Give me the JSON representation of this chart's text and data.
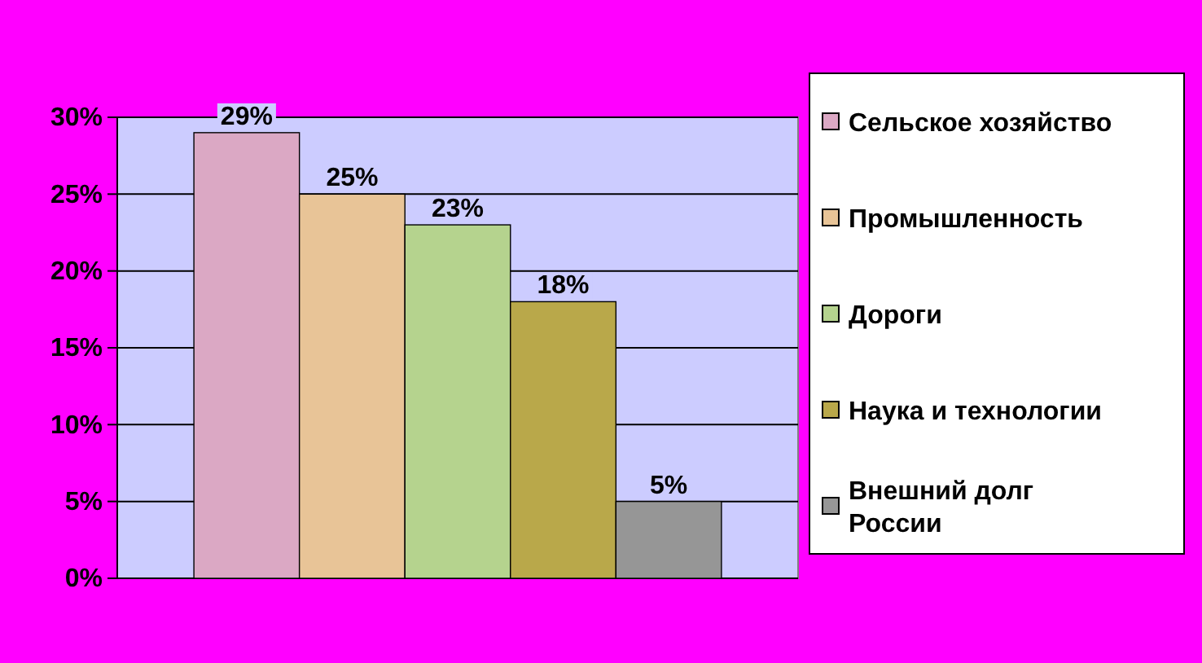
{
  "chart_data": {
    "type": "bar",
    "categories": [
      null
    ],
    "series": [
      {
        "name": "Сельское хозяйство",
        "color": "#dba8c4",
        "values": [
          29
        ],
        "value_labels": [
          "29%"
        ]
      },
      {
        "name": "Промышленность",
        "color": "#e8c497",
        "values": [
          25
        ],
        "value_labels": [
          "25%"
        ]
      },
      {
        "name": "Дороги",
        "color": "#b5d38e",
        "values": [
          23
        ],
        "value_labels": [
          "23%"
        ]
      },
      {
        "name": "Наука и технологии",
        "color": "#b9a84a",
        "values": [
          18
        ],
        "value_labels": [
          "18%"
        ]
      },
      {
        "name": "Внешний долг России",
        "color": "#969696",
        "values": [
          5
        ],
        "value_labels": [
          "5%"
        ]
      }
    ],
    "ylim": [
      0,
      30
    ],
    "yticks": [
      {
        "value": 0,
        "label": "0%"
      },
      {
        "value": 5,
        "label": "5%"
      },
      {
        "value": 10,
        "label": "10%"
      },
      {
        "value": 15,
        "label": "15%"
      },
      {
        "value": 20,
        "label": "20%"
      },
      {
        "value": 25,
        "label": "25%"
      },
      {
        "value": 30,
        "label": "30%"
      }
    ],
    "grid": "y",
    "legend": "right"
  }
}
